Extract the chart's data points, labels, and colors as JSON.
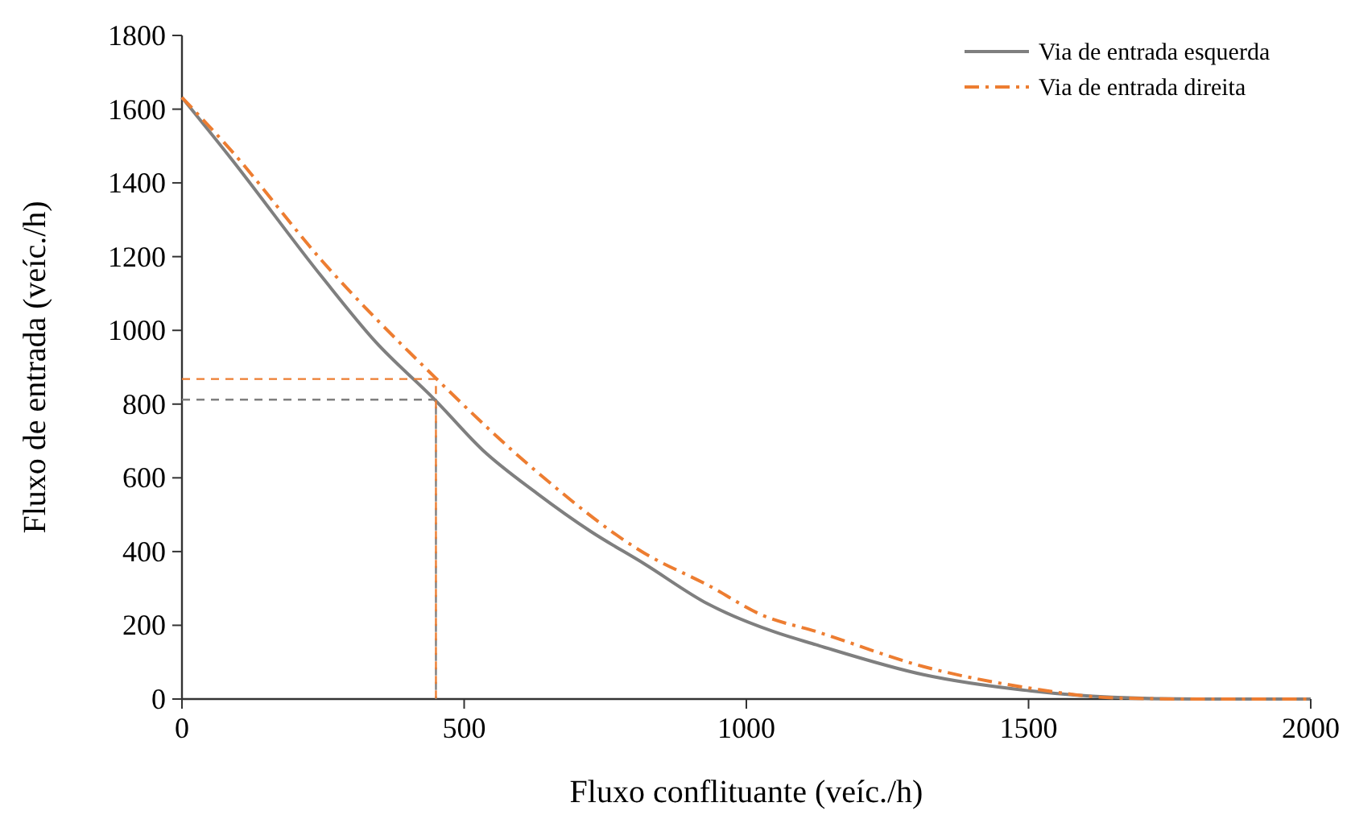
{
  "chart_data": {
    "type": "line",
    "xlabel": "Fluxo conflituante (veíc./h)",
    "ylabel": "Fluxo de entrada (veíc./h)",
    "xlim": [
      0,
      2000
    ],
    "xticks": [
      0,
      500,
      1000,
      1500,
      2000
    ],
    "ylim": [
      0,
      1800
    ],
    "yticks": [
      0,
      200,
      400,
      600,
      800,
      1000,
      1200,
      1400,
      1600,
      1800
    ],
    "grid": false,
    "legend": "top right",
    "series": [
      {
        "name": "Via de entrada esquerda",
        "color": "#7f7f7f",
        "line_style": "solid",
        "x": [
          0,
          86,
          248,
          343,
          448,
          533,
          629,
          724,
          819,
          933,
          1048,
          1124,
          1314,
          1505,
          1648,
          1800,
          2000
        ],
        "values": [
          1632,
          1468,
          1145,
          969,
          812,
          675,
          558,
          455,
          367,
          257,
          183,
          147,
          66,
          22,
          5,
          0,
          0
        ]
      },
      {
        "name": "Via de entrada direita",
        "color": "#ed7d31",
        "line_style": "dashdot",
        "x": [
          0,
          86,
          248,
          448,
          629,
          819,
          933,
          1029,
          1124,
          1314,
          1505,
          1652,
          1800,
          2000
        ],
        "values": [
          1632,
          1490,
          1189,
          873,
          616,
          396,
          308,
          227,
          183,
          88,
          29,
          3,
          0,
          0
        ]
      },
      {
        "color": "#7f7f7f",
        "line_style": "dashed",
        "x": [
          0,
          450,
          450
        ],
        "values": [
          812,
          812,
          0
        ]
      },
      {
        "color": "#ed7d31",
        "line_style": "dashed",
        "x": [
          0,
          450,
          450
        ],
        "values": [
          868,
          868,
          0
        ]
      }
    ]
  }
}
